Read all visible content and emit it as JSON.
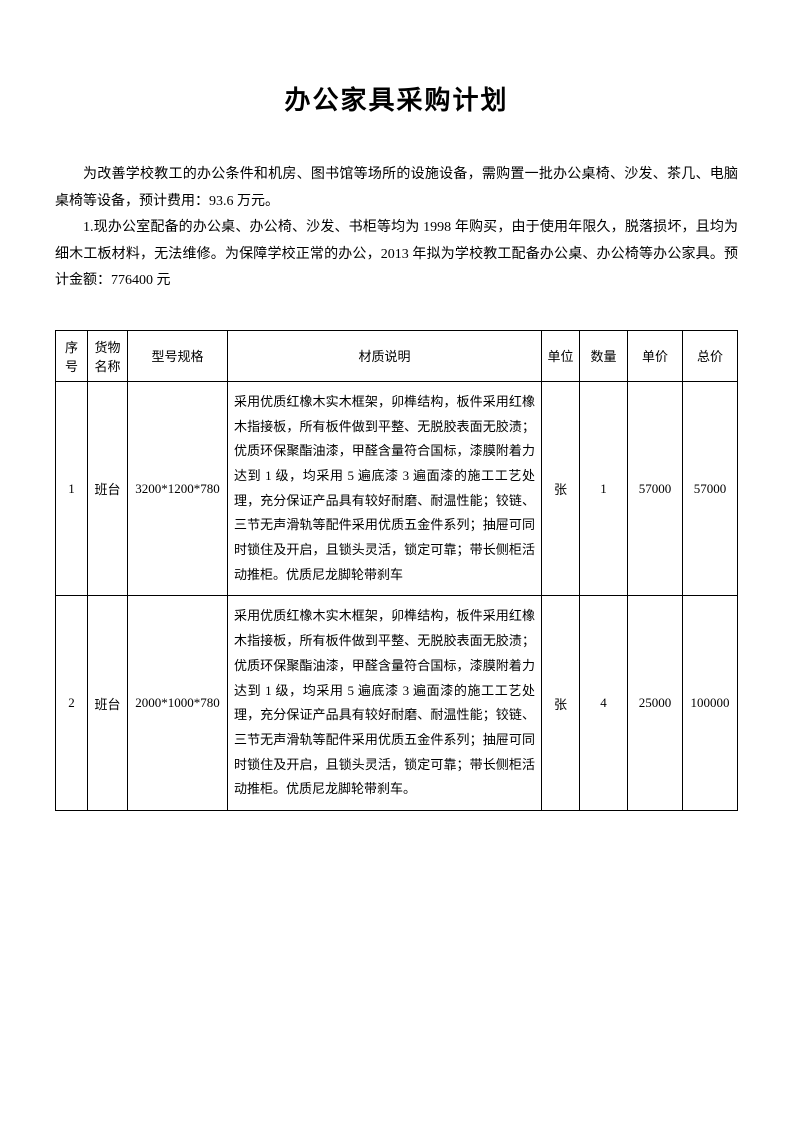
{
  "title": "办公家具采购计划",
  "intro": {
    "p1": "为改善学校教工的办公条件和机房、图书馆等场所的设施设备，需购置一批办公桌椅、沙发、茶几、电脑桌椅等设备，预计费用：93.6 万元。",
    "p2": "1.现办公室配备的办公桌、办公椅、沙发、书柜等均为 1998 年购买，由于使用年限久，脱落损坏，且均为细木工板材料，无法维修。为保障学校正常的办公，2013 年拟为学校教工配备办公桌、办公椅等办公家具。预计金额：776400 元"
  },
  "table": {
    "headers": {
      "seq": "序号",
      "name": "货物名称",
      "spec": "型号规格",
      "desc": "材质说明",
      "unit": "单位",
      "qty": "数量",
      "price": "单价",
      "total": "总价"
    },
    "rows": [
      {
        "seq": "1",
        "name": "班台",
        "spec": "3200*1200*780",
        "desc": "采用优质红橡木实木框架，卯榫结构，板件采用红橡木指接板，所有板件做到平整、无脱胶表面无胶渍；优质环保聚酯油漆，甲醛含量符合国标，漆膜附着力达到 1 级，均采用 5 遍底漆 3 遍面漆的施工工艺处理，充分保证产品具有较好耐磨、耐温性能；铰链、三节无声滑轨等配件采用优质五金件系列；抽屉可同时锁住及开启，且锁头灵活，锁定可靠；带长侧柜活动推柜。优质尼龙脚轮带刹车",
        "unit": "张",
        "qty": "1",
        "price": "57000",
        "total": "57000"
      },
      {
        "seq": "2",
        "name": "班台",
        "spec": "2000*1000*780",
        "desc": "采用优质红橡木实木框架，卯榫结构，板件采用红橡木指接板，所有板件做到平整、无脱胶表面无胶渍；优质环保聚酯油漆，甲醛含量符合国标，漆膜附着力达到 1 级，均采用 5 遍底漆 3 遍面漆的施工工艺处理，充分保证产品具有较好耐磨、耐温性能；铰链、三节无声滑轨等配件采用优质五金件系列；抽屉可同时锁住及开启，且锁头灵活，锁定可靠；带长侧柜活动推柜。优质尼龙脚轮带刹车。",
        "unit": "张",
        "qty": "4",
        "price": "25000",
        "total": "100000"
      }
    ]
  }
}
